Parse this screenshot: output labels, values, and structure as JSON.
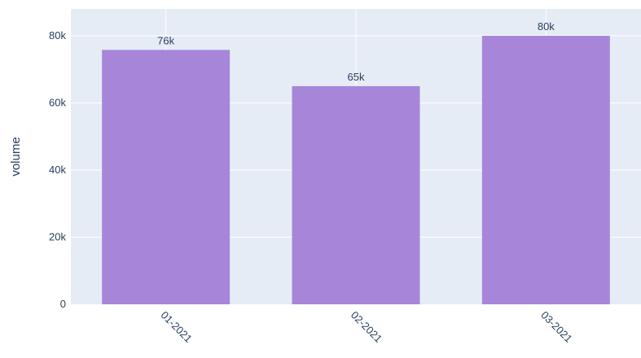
{
  "chart_data": {
    "type": "bar",
    "categories": [
      "01-2021",
      "02-2021",
      "03-2021"
    ],
    "values": [
      75800,
      65000,
      80000
    ],
    "data_labels": [
      "76k",
      "65k",
      "80k"
    ],
    "title": "",
    "xlabel": "",
    "ylabel": "volume",
    "ylim": [
      0,
      88000
    ],
    "yticks": [
      0,
      20000,
      40000,
      60000,
      80000
    ],
    "ytick_labels": [
      "0",
      "20k",
      "40k",
      "60k",
      "80k"
    ],
    "grid": true,
    "legend": "none",
    "colors": {
      "bar": "#a786da",
      "plot_background": "#e5ecf6",
      "grid": "#ffffff",
      "text": "#2a3f5f"
    }
  }
}
